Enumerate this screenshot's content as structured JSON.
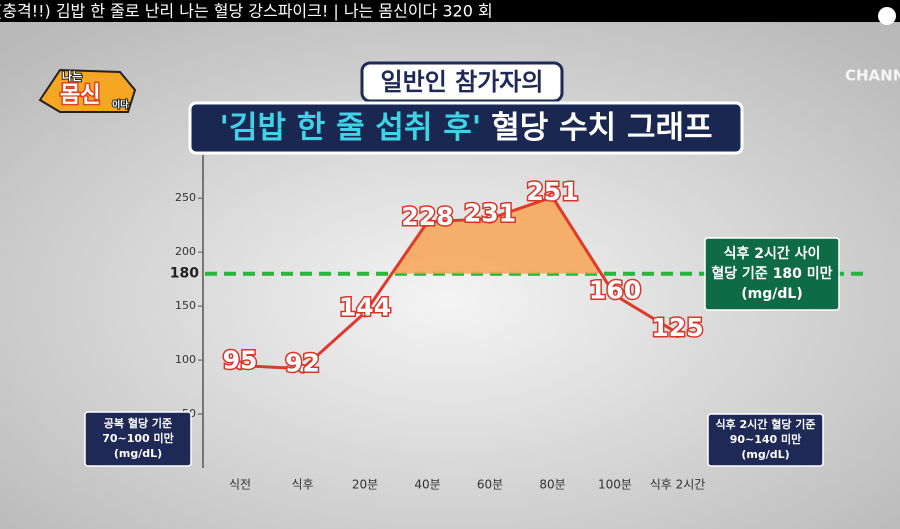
{
  "video_title": "(충격!!) 김밥 한 줄로 난리 나는 혈당 강스파이크! | 나는 몸신이다 320 회",
  "show_logo": [
    "나는",
    "몸신",
    "이다"
  ],
  "channel_logo": "CHANNE",
  "chart_data": {
    "type": "line",
    "subtitle": "일반인 참가자의",
    "title_highlight": "'김밥 한 줄 섭취 후'",
    "title": "혈당 수치 그래프",
    "categories": [
      "식전",
      "식후",
      "20분",
      "40분",
      "60분",
      "80분",
      "100분",
      "식후 2시간"
    ],
    "values": [
      95,
      92,
      144,
      228,
      231,
      251,
      160,
      125
    ],
    "color": "#e0392c",
    "fill_above_threshold_color": "#f7a95c",
    "threshold": 180,
    "threshold_color": "#25b53b",
    "ylim": [
      0,
      290
    ],
    "yticks": [
      50,
      100,
      150,
      200,
      250
    ],
    "annotations": [
      {
        "lines": [
          "식후 2시간 사이",
          "혈당 기준 180 미만",
          "(mg/dL)"
        ],
        "color": "#0f6b46"
      },
      {
        "lines": [
          "공복 혈당 기준",
          "70~100 미만",
          "(mg/dL)"
        ],
        "color": "#1e2a55"
      },
      {
        "lines": [
          "식후 2시간 혈당 기준",
          "90~140 미만",
          "(mg/dL)"
        ],
        "color": "#1e2a55"
      }
    ]
  }
}
